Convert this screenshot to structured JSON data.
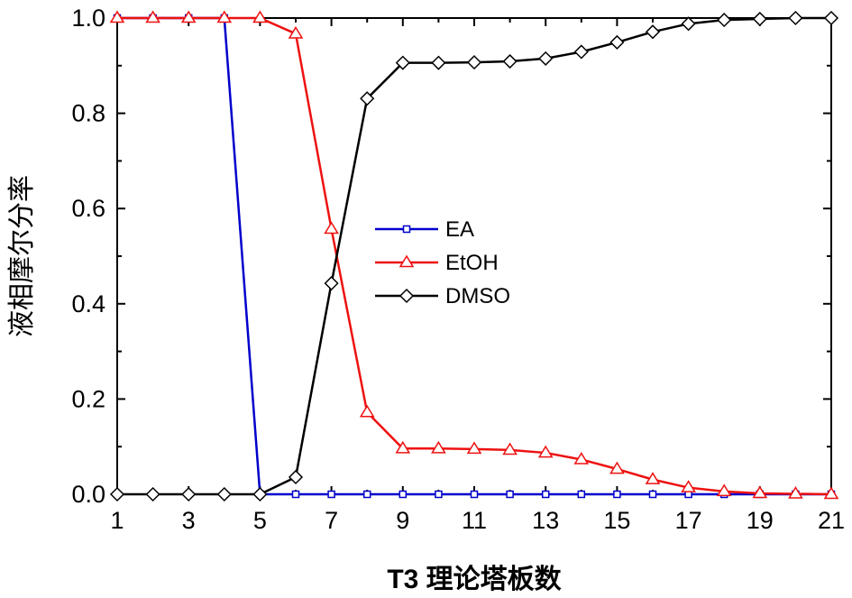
{
  "chart_data": {
    "type": "line",
    "title": "",
    "xlabel": "T3 理论塔板数",
    "ylabel": "液相摩尔分率",
    "xlim": [
      1,
      21
    ],
    "ylim": [
      0,
      1.0
    ],
    "xticks": [
      "1",
      "3",
      "5",
      "7",
      "9",
      "11",
      "13",
      "15",
      "17",
      "19",
      "21"
    ],
    "yticks": [
      "0.0",
      "0.2",
      "0.4",
      "0.6",
      "0.8",
      "1.0"
    ],
    "grid": false,
    "legend_position": "center",
    "x": [
      1,
      2,
      3,
      4,
      5,
      6,
      7,
      8,
      9,
      10,
      11,
      12,
      13,
      14,
      15,
      16,
      17,
      18,
      19,
      20,
      21
    ],
    "series": [
      {
        "name": "EA",
        "color": "#0000cc",
        "marker": "square",
        "values": [
          1.0,
          1.0,
          1.0,
          1.0,
          0.0,
          0.0,
          0.0,
          0.0,
          0.0,
          0.0,
          0.0,
          0.0,
          0.0,
          0.0,
          0.0,
          0.0,
          0.0,
          0.0,
          0.0,
          0.0,
          0.0
        ]
      },
      {
        "name": "EtOH",
        "color": "#ee1111",
        "marker": "triangle",
        "values": [
          1.0,
          1.0,
          1.0,
          1.0,
          1.0,
          0.967,
          0.557,
          0.172,
          0.096,
          0.096,
          0.095,
          0.093,
          0.087,
          0.073,
          0.053,
          0.031,
          0.014,
          0.006,
          0.002,
          0.001,
          0.0
        ]
      },
      {
        "name": "DMSO",
        "color": "#000000",
        "marker": "diamond",
        "values": [
          0.0,
          0.0,
          0.0,
          0.0,
          0.0,
          0.036,
          0.443,
          0.831,
          0.906,
          0.906,
          0.907,
          0.909,
          0.915,
          0.929,
          0.949,
          0.971,
          0.988,
          0.996,
          0.998,
          1.0,
          1.0
        ]
      }
    ]
  }
}
